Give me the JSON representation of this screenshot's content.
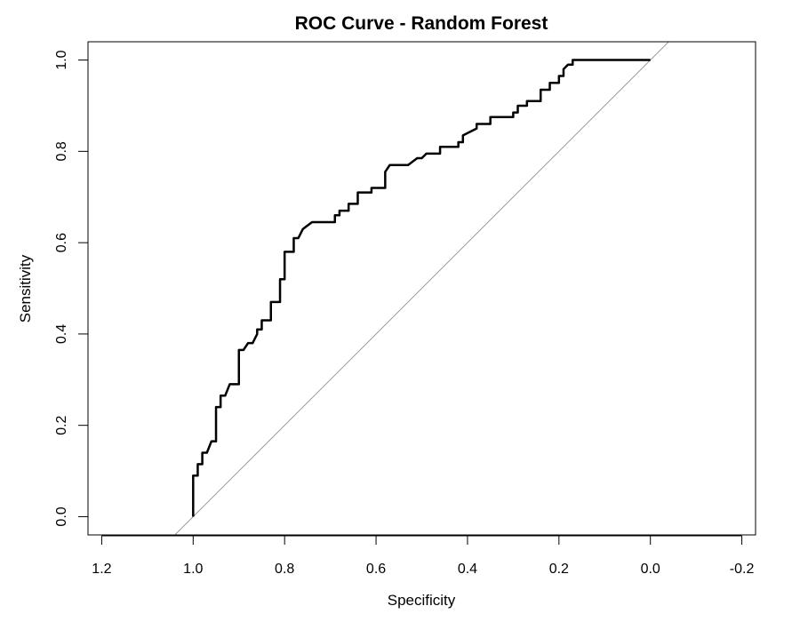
{
  "chart_data": {
    "type": "line",
    "title": "ROC Curve - Random Forest",
    "xlabel": "Specificity",
    "ylabel": "Sensitivity",
    "xlim": [
      1.23,
      -0.23
    ],
    "ylim": [
      -0.04,
      1.04
    ],
    "x_axis_reversed": true,
    "x_ticks": [
      1.2,
      1.0,
      0.8,
      0.6,
      0.4,
      0.2,
      0.0,
      -0.2
    ],
    "x_tick_labels": [
      "1.2",
      "1.0",
      "0.8",
      "0.6",
      "0.4",
      "0.2",
      "0.0",
      "-0.2"
    ],
    "y_ticks": [
      0.0,
      0.2,
      0.4,
      0.6,
      0.8,
      1.0
    ],
    "y_tick_labels": [
      "0.0",
      "0.2",
      "0.4",
      "0.6",
      "0.8",
      "1.0"
    ],
    "grid": false,
    "legend": "none",
    "series": [
      {
        "color": "#000000",
        "x": [
          1.0,
          1.0,
          0.99,
          0.99,
          0.98,
          0.98,
          0.97,
          0.96,
          0.95,
          0.95,
          0.94,
          0.94,
          0.93,
          0.92,
          0.9,
          0.9,
          0.89,
          0.88,
          0.87,
          0.86,
          0.86,
          0.85,
          0.85,
          0.83,
          0.83,
          0.81,
          0.81,
          0.8,
          0.8,
          0.78,
          0.78,
          0.77,
          0.76,
          0.74,
          0.69,
          0.69,
          0.68,
          0.68,
          0.66,
          0.66,
          0.64,
          0.64,
          0.61,
          0.61,
          0.58,
          0.58,
          0.57,
          0.53,
          0.51,
          0.5,
          0.49,
          0.46,
          0.46,
          0.42,
          0.42,
          0.41,
          0.41,
          0.38,
          0.38,
          0.35,
          0.35,
          0.3,
          0.3,
          0.29,
          0.29,
          0.27,
          0.27,
          0.24,
          0.24,
          0.22,
          0.22,
          0.2,
          0.2,
          0.19,
          0.19,
          0.18,
          0.17,
          0.17,
          0.14,
          0.0
        ],
        "y": [
          0.0,
          0.09,
          0.09,
          0.115,
          0.115,
          0.14,
          0.14,
          0.165,
          0.165,
          0.24,
          0.24,
          0.265,
          0.265,
          0.29,
          0.29,
          0.365,
          0.365,
          0.38,
          0.38,
          0.4,
          0.41,
          0.41,
          0.43,
          0.43,
          0.47,
          0.47,
          0.52,
          0.52,
          0.58,
          0.58,
          0.61,
          0.61,
          0.63,
          0.645,
          0.645,
          0.66,
          0.66,
          0.67,
          0.67,
          0.685,
          0.685,
          0.71,
          0.71,
          0.72,
          0.72,
          0.755,
          0.77,
          0.77,
          0.785,
          0.785,
          0.795,
          0.795,
          0.81,
          0.81,
          0.82,
          0.82,
          0.835,
          0.85,
          0.86,
          0.86,
          0.875,
          0.875,
          0.885,
          0.885,
          0.9,
          0.9,
          0.91,
          0.91,
          0.935,
          0.935,
          0.95,
          0.95,
          0.965,
          0.965,
          0.98,
          0.99,
          0.99,
          1.0,
          1.0,
          1.0
        ]
      }
    ],
    "reference_line": {
      "slope": -1,
      "intercept": 1,
      "color": "#999999"
    }
  }
}
